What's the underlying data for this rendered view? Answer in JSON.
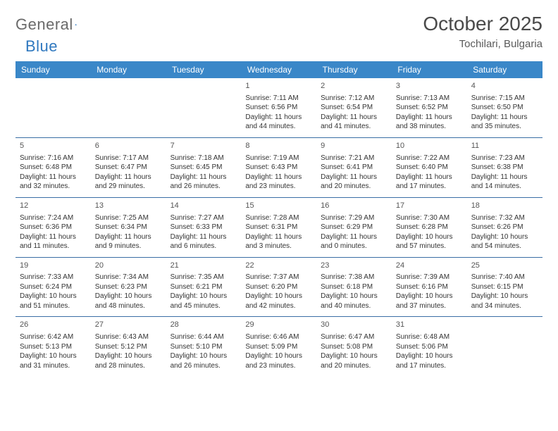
{
  "logo": {
    "part1": "General",
    "part2": "Blue"
  },
  "title": "October 2025",
  "location": "Tochilari, Bulgaria",
  "colors": {
    "header_bg": "#3a87c8",
    "header_text": "#ffffff",
    "row_border": "#3a6ea5",
    "logo_gray": "#6a6a6a",
    "logo_blue": "#2f78bf",
    "title_color": "#4a4a4a",
    "body_text": "#333333",
    "page_bg": "#ffffff"
  },
  "day_headers": [
    "Sunday",
    "Monday",
    "Tuesday",
    "Wednesday",
    "Thursday",
    "Friday",
    "Saturday"
  ],
  "weeks": [
    [
      null,
      null,
      null,
      {
        "n": "1",
        "sr": "Sunrise: 7:11 AM",
        "ss": "Sunset: 6:56 PM",
        "d1": "Daylight: 11 hours",
        "d2": "and 44 minutes."
      },
      {
        "n": "2",
        "sr": "Sunrise: 7:12 AM",
        "ss": "Sunset: 6:54 PM",
        "d1": "Daylight: 11 hours",
        "d2": "and 41 minutes."
      },
      {
        "n": "3",
        "sr": "Sunrise: 7:13 AM",
        "ss": "Sunset: 6:52 PM",
        "d1": "Daylight: 11 hours",
        "d2": "and 38 minutes."
      },
      {
        "n": "4",
        "sr": "Sunrise: 7:15 AM",
        "ss": "Sunset: 6:50 PM",
        "d1": "Daylight: 11 hours",
        "d2": "and 35 minutes."
      }
    ],
    [
      {
        "n": "5",
        "sr": "Sunrise: 7:16 AM",
        "ss": "Sunset: 6:48 PM",
        "d1": "Daylight: 11 hours",
        "d2": "and 32 minutes."
      },
      {
        "n": "6",
        "sr": "Sunrise: 7:17 AM",
        "ss": "Sunset: 6:47 PM",
        "d1": "Daylight: 11 hours",
        "d2": "and 29 minutes."
      },
      {
        "n": "7",
        "sr": "Sunrise: 7:18 AM",
        "ss": "Sunset: 6:45 PM",
        "d1": "Daylight: 11 hours",
        "d2": "and 26 minutes."
      },
      {
        "n": "8",
        "sr": "Sunrise: 7:19 AM",
        "ss": "Sunset: 6:43 PM",
        "d1": "Daylight: 11 hours",
        "d2": "and 23 minutes."
      },
      {
        "n": "9",
        "sr": "Sunrise: 7:21 AM",
        "ss": "Sunset: 6:41 PM",
        "d1": "Daylight: 11 hours",
        "d2": "and 20 minutes."
      },
      {
        "n": "10",
        "sr": "Sunrise: 7:22 AM",
        "ss": "Sunset: 6:40 PM",
        "d1": "Daylight: 11 hours",
        "d2": "and 17 minutes."
      },
      {
        "n": "11",
        "sr": "Sunrise: 7:23 AM",
        "ss": "Sunset: 6:38 PM",
        "d1": "Daylight: 11 hours",
        "d2": "and 14 minutes."
      }
    ],
    [
      {
        "n": "12",
        "sr": "Sunrise: 7:24 AM",
        "ss": "Sunset: 6:36 PM",
        "d1": "Daylight: 11 hours",
        "d2": "and 11 minutes."
      },
      {
        "n": "13",
        "sr": "Sunrise: 7:25 AM",
        "ss": "Sunset: 6:34 PM",
        "d1": "Daylight: 11 hours",
        "d2": "and 9 minutes."
      },
      {
        "n": "14",
        "sr": "Sunrise: 7:27 AM",
        "ss": "Sunset: 6:33 PM",
        "d1": "Daylight: 11 hours",
        "d2": "and 6 minutes."
      },
      {
        "n": "15",
        "sr": "Sunrise: 7:28 AM",
        "ss": "Sunset: 6:31 PM",
        "d1": "Daylight: 11 hours",
        "d2": "and 3 minutes."
      },
      {
        "n": "16",
        "sr": "Sunrise: 7:29 AM",
        "ss": "Sunset: 6:29 PM",
        "d1": "Daylight: 11 hours",
        "d2": "and 0 minutes."
      },
      {
        "n": "17",
        "sr": "Sunrise: 7:30 AM",
        "ss": "Sunset: 6:28 PM",
        "d1": "Daylight: 10 hours",
        "d2": "and 57 minutes."
      },
      {
        "n": "18",
        "sr": "Sunrise: 7:32 AM",
        "ss": "Sunset: 6:26 PM",
        "d1": "Daylight: 10 hours",
        "d2": "and 54 minutes."
      }
    ],
    [
      {
        "n": "19",
        "sr": "Sunrise: 7:33 AM",
        "ss": "Sunset: 6:24 PM",
        "d1": "Daylight: 10 hours",
        "d2": "and 51 minutes."
      },
      {
        "n": "20",
        "sr": "Sunrise: 7:34 AM",
        "ss": "Sunset: 6:23 PM",
        "d1": "Daylight: 10 hours",
        "d2": "and 48 minutes."
      },
      {
        "n": "21",
        "sr": "Sunrise: 7:35 AM",
        "ss": "Sunset: 6:21 PM",
        "d1": "Daylight: 10 hours",
        "d2": "and 45 minutes."
      },
      {
        "n": "22",
        "sr": "Sunrise: 7:37 AM",
        "ss": "Sunset: 6:20 PM",
        "d1": "Daylight: 10 hours",
        "d2": "and 42 minutes."
      },
      {
        "n": "23",
        "sr": "Sunrise: 7:38 AM",
        "ss": "Sunset: 6:18 PM",
        "d1": "Daylight: 10 hours",
        "d2": "and 40 minutes."
      },
      {
        "n": "24",
        "sr": "Sunrise: 7:39 AM",
        "ss": "Sunset: 6:16 PM",
        "d1": "Daylight: 10 hours",
        "d2": "and 37 minutes."
      },
      {
        "n": "25",
        "sr": "Sunrise: 7:40 AM",
        "ss": "Sunset: 6:15 PM",
        "d1": "Daylight: 10 hours",
        "d2": "and 34 minutes."
      }
    ],
    [
      {
        "n": "26",
        "sr": "Sunrise: 6:42 AM",
        "ss": "Sunset: 5:13 PM",
        "d1": "Daylight: 10 hours",
        "d2": "and 31 minutes."
      },
      {
        "n": "27",
        "sr": "Sunrise: 6:43 AM",
        "ss": "Sunset: 5:12 PM",
        "d1": "Daylight: 10 hours",
        "d2": "and 28 minutes."
      },
      {
        "n": "28",
        "sr": "Sunrise: 6:44 AM",
        "ss": "Sunset: 5:10 PM",
        "d1": "Daylight: 10 hours",
        "d2": "and 26 minutes."
      },
      {
        "n": "29",
        "sr": "Sunrise: 6:46 AM",
        "ss": "Sunset: 5:09 PM",
        "d1": "Daylight: 10 hours",
        "d2": "and 23 minutes."
      },
      {
        "n": "30",
        "sr": "Sunrise: 6:47 AM",
        "ss": "Sunset: 5:08 PM",
        "d1": "Daylight: 10 hours",
        "d2": "and 20 minutes."
      },
      {
        "n": "31",
        "sr": "Sunrise: 6:48 AM",
        "ss": "Sunset: 5:06 PM",
        "d1": "Daylight: 10 hours",
        "d2": "and 17 minutes."
      },
      null
    ]
  ]
}
